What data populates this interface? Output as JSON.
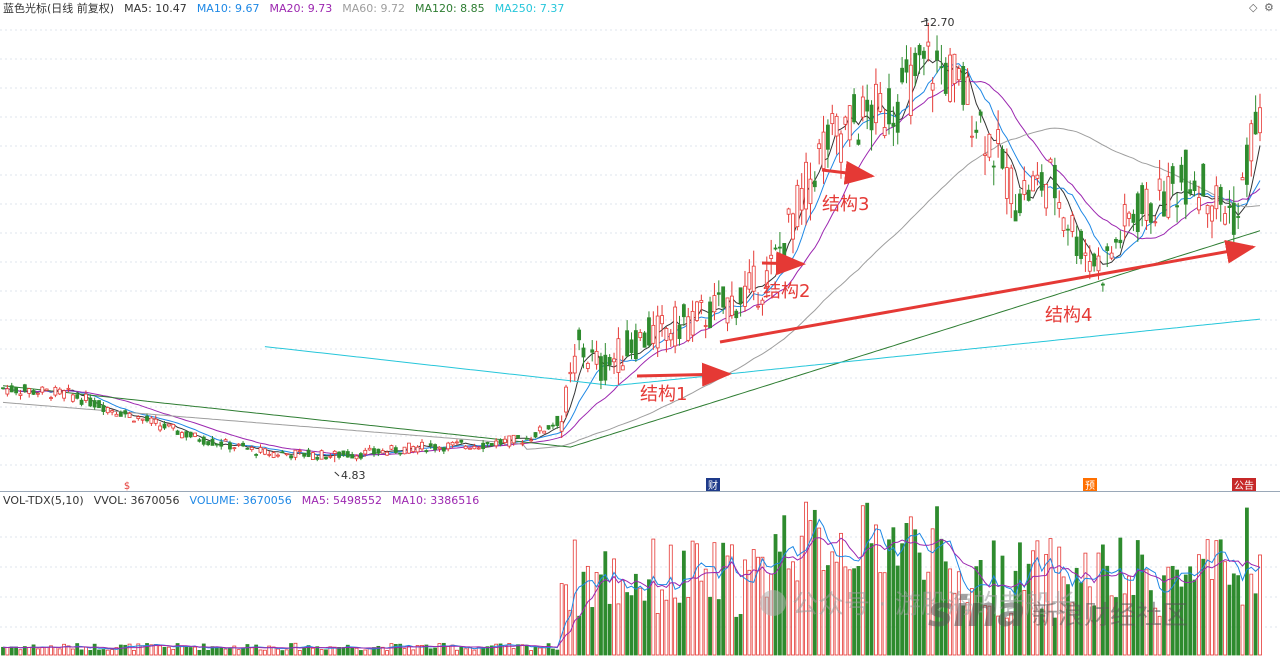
{
  "main_header": {
    "stock": "蓝色光标(日线 前复权)",
    "items": [
      {
        "label": "MA5: 10.47",
        "color": "#333333"
      },
      {
        "label": "MA10: 9.67",
        "color": "#1e88e5"
      },
      {
        "label": "MA20: 9.73",
        "color": "#9c27b0"
      },
      {
        "label": "MA60: 9.72",
        "color": "#9e9e9e"
      },
      {
        "label": "MA120: 8.85",
        "color": "#2e7d32"
      },
      {
        "label": "MA250: 7.37",
        "color": "#26c6da"
      }
    ]
  },
  "volume_header": {
    "items": [
      {
        "label": "VOL-TDX(5,10)",
        "color": "#333333"
      },
      {
        "label": "VVOL: 3670056",
        "color": "#333333"
      },
      {
        "label": "VOLUME: 3670056",
        "color": "#1e88e5"
      },
      {
        "label": "MA5: 5498552",
        "color": "#9c27b0"
      },
      {
        "label": "MA10: 3386516",
        "color": "#9c27b0"
      }
    ]
  },
  "corner_icons": [
    "diamond-icon",
    "gear-icon"
  ],
  "markers": [
    {
      "label": "$",
      "color": "#e53935",
      "day": 28
    },
    {
      "label": "财",
      "color": "#1e3a8a",
      "day": 160
    },
    {
      "label": "预",
      "color": "#ff6f00",
      "day": 245
    },
    {
      "label": "公告",
      "color": "#c62828",
      "day": 278
    }
  ],
  "annotations": [
    {
      "label": "结构1",
      "color": "#e53935"
    },
    {
      "label": "结构2",
      "color": "#e53935"
    },
    {
      "label": "结构3",
      "color": "#e53935"
    },
    {
      "label": "结构4",
      "color": "#e53935"
    }
  ],
  "price_labels": {
    "high": "12.70",
    "low": "4.83"
  },
  "watermark": {
    "wechat": "公众号 · 游股海的老船长",
    "logo": "sina",
    "text": "新浪财经社区"
  },
  "colors": {
    "up": "#e53935",
    "down": "#2e8b2e",
    "arrow": "#e53935"
  },
  "chart_data": {
    "type": "candlestick",
    "days": 289,
    "price_high": 12.7,
    "price_low": 4.83,
    "ma_latest": {
      "MA5": 10.47,
      "MA10": 9.67,
      "MA20": 9.73,
      "MA60": 9.72,
      "MA120": 8.85,
      "MA250": 7.37
    },
    "volume_latest": 3670056,
    "volume_ma5": 5498552,
    "volume_ma10": 3386516
  }
}
